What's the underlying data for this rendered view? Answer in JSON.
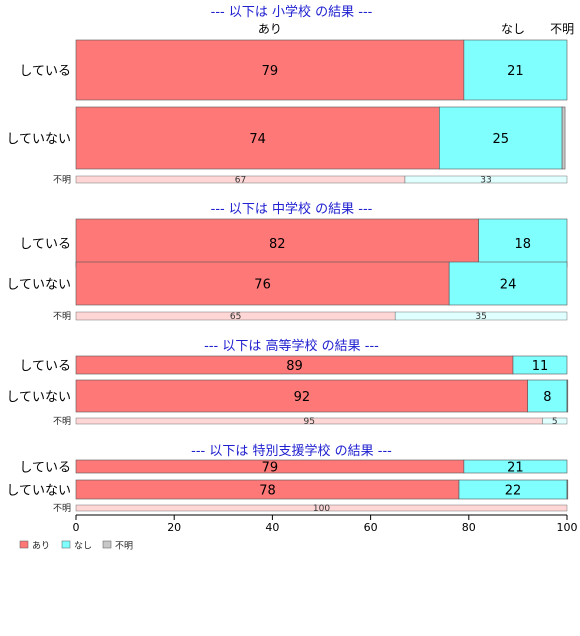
{
  "chart_data": {
    "type": "bar",
    "orientation": "horizontal-stacked",
    "xlim": [
      0,
      100
    ],
    "xticks": [
      0,
      20,
      40,
      60,
      80,
      100
    ],
    "series_names": [
      "あり",
      "なし",
      "不明"
    ],
    "colors": {
      "あり": "#ff7878",
      "なし": "#80ffff",
      "不明": "#c8c8c8"
    },
    "column_headers": [
      "あり",
      "なし",
      "不明"
    ],
    "sections": [
      {
        "title": "--- 以下は 小学校 の結果 ---",
        "rows": [
          {
            "label": "している",
            "values": [
              79,
              21,
              0
            ],
            "shown": [
              "79",
              "21",
              ""
            ]
          },
          {
            "label": "していない",
            "values": [
              74,
              25,
              0.6
            ],
            "shown": [
              "74",
              "25",
              ""
            ]
          },
          {
            "label": "不明",
            "values": [
              67,
              33,
              0
            ],
            "shown": [
              "67",
              "33",
              ""
            ]
          }
        ]
      },
      {
        "title": "--- 以下は 中学校 の結果 ---",
        "rows": [
          {
            "label": "している",
            "values": [
              82,
              18,
              0
            ],
            "shown": [
              "82",
              "18",
              ""
            ]
          },
          {
            "label": "していない",
            "values": [
              76,
              24,
              0
            ],
            "shown": [
              "76",
              "24",
              ""
            ]
          },
          {
            "label": "不明",
            "values": [
              65,
              35,
              0
            ],
            "shown": [
              "65",
              "35",
              ""
            ]
          }
        ]
      },
      {
        "title": "--- 以下は 高等学校 の結果 ---",
        "rows": [
          {
            "label": "している",
            "values": [
              89,
              11,
              0
            ],
            "shown": [
              "89",
              "11",
              ""
            ]
          },
          {
            "label": "していない",
            "values": [
              92,
              8,
              0.3
            ],
            "shown": [
              "92",
              "8",
              ""
            ]
          },
          {
            "label": "不明",
            "values": [
              95,
              5,
              0
            ],
            "shown": [
              "95",
              "5",
              ""
            ]
          }
        ]
      },
      {
        "title": "--- 以下は 特別支援学校 の結果 ---",
        "rows": [
          {
            "label": "している",
            "values": [
              79,
              21,
              0
            ],
            "shown": [
              "79",
              "21",
              ""
            ]
          },
          {
            "label": "していない",
            "values": [
              78,
              22,
              0.5
            ],
            "shown": [
              "78",
              "22",
              ""
            ]
          },
          {
            "label": "不明",
            "values": [
              100,
              0,
              0
            ],
            "shown": [
              "100",
              "",
              ""
            ]
          }
        ]
      }
    ],
    "legend": {
      "position": "bottom-left",
      "entries": [
        "あり",
        "なし",
        "不明"
      ]
    }
  }
}
